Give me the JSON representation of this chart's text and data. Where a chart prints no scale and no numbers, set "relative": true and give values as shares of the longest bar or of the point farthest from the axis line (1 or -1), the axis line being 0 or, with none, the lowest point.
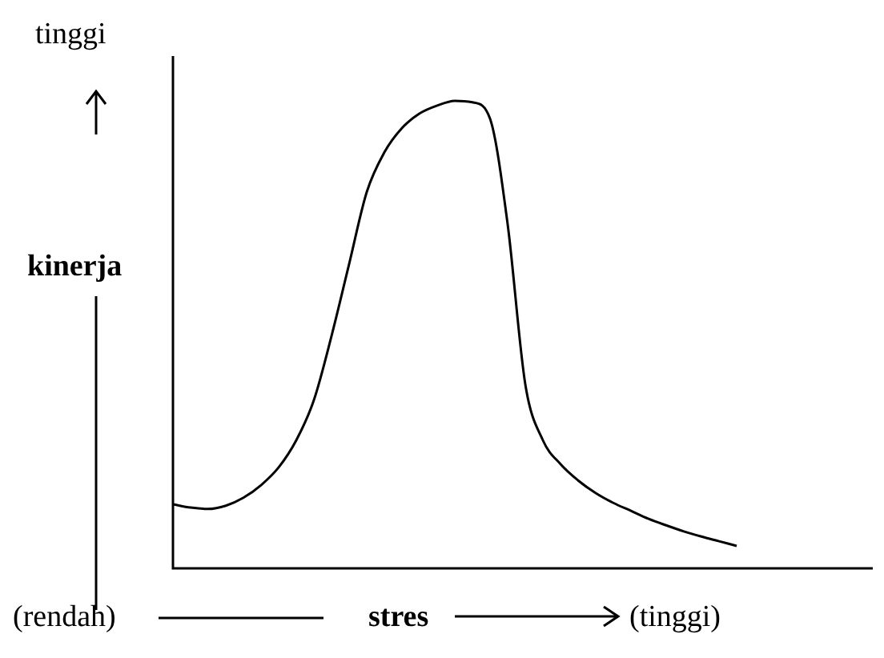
{
  "chart_data": {
    "type": "line",
    "xlabel": "stres",
    "ylabel": "kinerja",
    "annotations": [
      "tinggi",
      "(rendah)",
      "(tinggi)"
    ],
    "categories": [
      null,
      null,
      null,
      null,
      null,
      null,
      null,
      null,
      null,
      null,
      null,
      null,
      null,
      null,
      null,
      null,
      null,
      null,
      null,
      null,
      null,
      null,
      null,
      null,
      null,
      null,
      null,
      null,
      null,
      null,
      null,
      null,
      null
    ],
    "values": [
      0.137,
      0.13,
      0.127,
      0.134,
      0.151,
      0.178,
      0.216,
      0.274,
      0.36,
      0.497,
      0.651,
      0.805,
      0.89,
      0.942,
      0.973,
      0.99,
      1,
      0.997,
      0.962,
      0.736,
      0.394,
      0.274,
      0.223,
      0.188,
      0.161,
      0.14,
      0.123,
      0.106,
      0.092,
      0.079,
      0.068,
      0.058,
      0.048
    ],
    "color": "#000000",
    "relative": true,
    "marker": "none",
    "tick_labels": false
  }
}
